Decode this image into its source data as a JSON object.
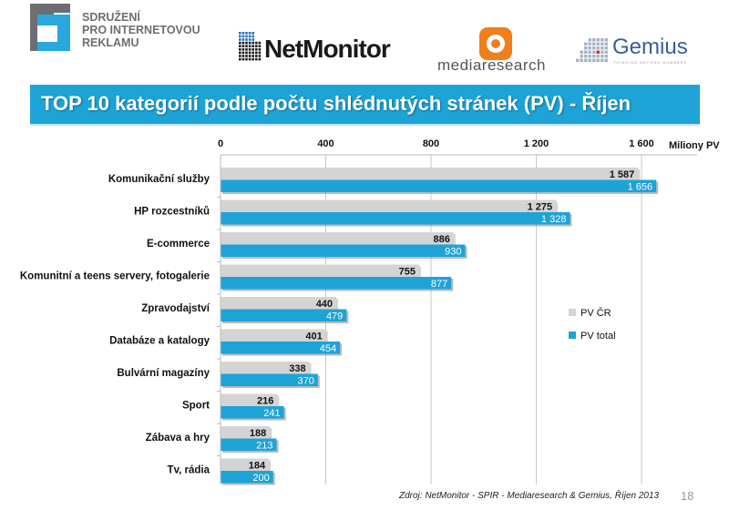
{
  "header": {
    "spir_logo_text": [
      "SDRUŽENÍ",
      "PRO INTERNETOVOU",
      "REKLAMU"
    ],
    "netmonitor_logo": "NetMonitor",
    "mediaresearch_logo": "mediaresearch",
    "gemius_logo": "Gemius",
    "gemius_tagline": "THINKING BEYOND NUMBERS"
  },
  "title": "TOP 10 kategorií podle počtu shlédnutých stránek (PV) - Říjen",
  "footer": {
    "source": "Zdroj: NetMonitor - SPIR - Mediaresearch & Gemius, Říjen 2013",
    "page": "18"
  },
  "colors": {
    "pv_cr": "#d4d4d4",
    "pv_total": "#1ea3d6",
    "title_bar": "#1ea3d6"
  },
  "chart_data": {
    "type": "bar",
    "orientation": "horizontal",
    "title": "TOP 10 kategorií podle počtu shlédnutých stránek (PV) - Říjen",
    "xlabel": "Miliony PV",
    "xlim": [
      0,
      1800
    ],
    "xticks": [
      0,
      400,
      800,
      1200,
      1600
    ],
    "xtick_labels": [
      "0",
      "400",
      "800",
      "1 200",
      "1 600"
    ],
    "grid": "vertical",
    "legend_position": "right",
    "categories": [
      "Komunikační služby",
      "HP rozcestníků",
      "E-commerce",
      "Komunitní a teens servery, fotogalerie",
      "Zpravodajství",
      "Databáze a katalogy",
      "Bulvární magazíny",
      "Sport",
      "Zábava a hry",
      "Tv, rádia"
    ],
    "series": [
      {
        "name": "PV ČR",
        "values": [
          1587,
          1275,
          886,
          755,
          440,
          401,
          338,
          216,
          188,
          184
        ],
        "labels": [
          "1 587",
          "1 275",
          "886",
          "755",
          "440",
          "401",
          "338",
          "216",
          "188",
          "184"
        ]
      },
      {
        "name": "PV total",
        "values": [
          1656,
          1328,
          930,
          877,
          479,
          454,
          370,
          241,
          213,
          200
        ],
        "labels": [
          "1 656",
          "1 328",
          "930",
          "877",
          "479",
          "454",
          "370",
          "241",
          "213",
          "200"
        ]
      }
    ]
  }
}
